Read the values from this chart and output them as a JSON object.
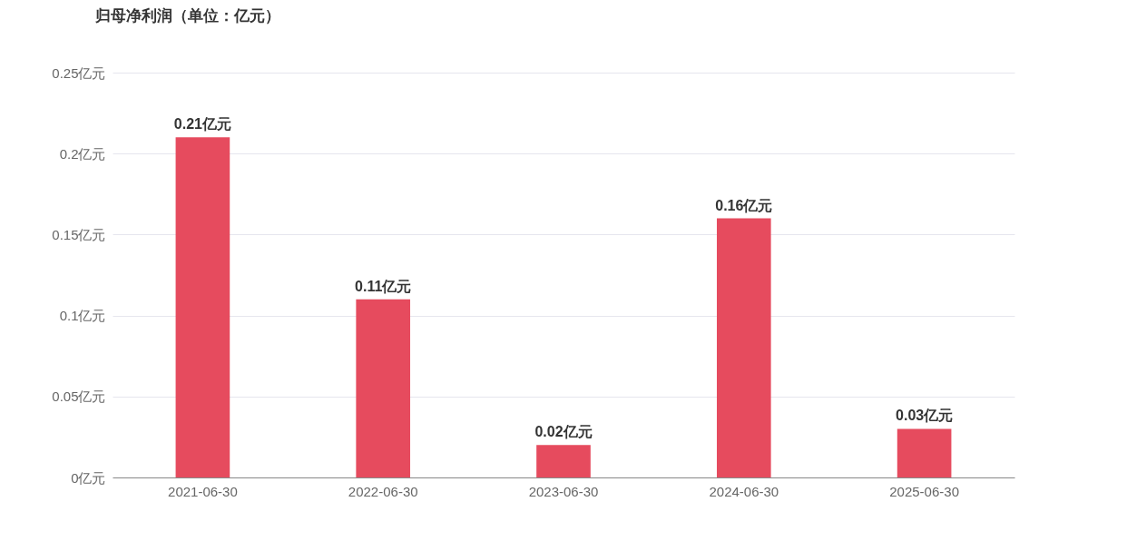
{
  "chart_data": {
    "type": "bar",
    "title": "归母净利润（单位：亿元）",
    "categories": [
      "2021-06-30",
      "2022-06-30",
      "2023-06-30",
      "2024-06-30",
      "2025-06-30"
    ],
    "values": [
      0.21,
      0.11,
      0.02,
      0.16,
      0.03
    ],
    "value_labels": [
      "0.21亿元",
      "0.11亿元",
      "0.02亿元",
      "0.16亿元",
      "0.03亿元"
    ],
    "color": "#e64b5e",
    "ylim": [
      0,
      0.25
    ],
    "yticks": [
      {
        "value": 0,
        "label": "0亿元"
      },
      {
        "value": 0.05,
        "label": "0.05亿元"
      },
      {
        "value": 0.1,
        "label": "0.1亿元"
      },
      {
        "value": 0.15,
        "label": "0.15亿元"
      },
      {
        "value": 0.2,
        "label": "0.2亿元"
      },
      {
        "value": 0.25,
        "label": "0.25亿元"
      }
    ],
    "grid": "y"
  }
}
